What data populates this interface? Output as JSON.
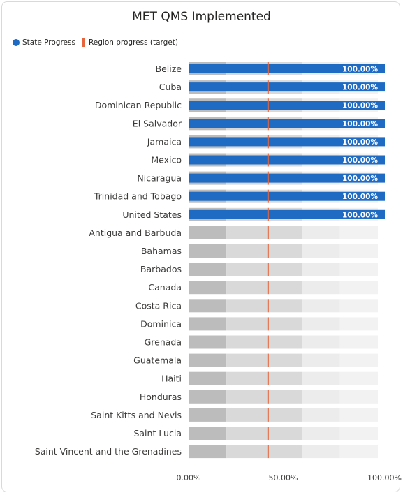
{
  "chart_data": {
    "type": "bar",
    "orientation": "horizontal",
    "title": "MET QMS Implemented",
    "legend": [
      {
        "name": "State Progress",
        "marker": "dot",
        "color": "#1f6bc4"
      },
      {
        "name": "Region progress (target)",
        "marker": "line",
        "color": "#e8663d"
      }
    ],
    "legend_position": "top-left",
    "categories": [
      "Belize",
      "Cuba",
      "Dominican Republic",
      "El Salvador",
      "Jamaica",
      "Mexico",
      "Nicaragua",
      "Trinidad and Tobago",
      "United States",
      "Antigua and Barbuda",
      "Bahamas",
      "Barbados",
      "Canada",
      "Costa Rica",
      "Dominica",
      "Grenada",
      "Guatemala",
      "Haiti",
      "Honduras",
      "Saint Kitts and Nevis",
      "Saint Lucia",
      "Saint Vincent and the Grenadines"
    ],
    "series": [
      {
        "name": "State Progress",
        "color": "#1f6bc4",
        "values": [
          100,
          100,
          100,
          100,
          100,
          100,
          100,
          100,
          100,
          0,
          0,
          0,
          0,
          0,
          0,
          0,
          0,
          0,
          0,
          0,
          0,
          0
        ]
      }
    ],
    "data_labels": [
      "100.00%",
      "100.00%",
      "100.00%",
      "100.00%",
      "100.00%",
      "100.00%",
      "100.00%",
      "100.00%",
      "100.00%"
    ],
    "target": 42,
    "target_color": "#e8663d",
    "bands": [
      {
        "from": 0,
        "to": 20,
        "color": "#bcbcbc"
      },
      {
        "from": 20,
        "to": 60,
        "color": "#d9d9d9"
      },
      {
        "from": 60,
        "to": 80,
        "color": "#ececec"
      },
      {
        "from": 80,
        "to": 100,
        "color": "#f2f2f2"
      }
    ],
    "xlim": [
      0,
      100
    ],
    "x_ticks": [
      "0.00%",
      "50.00%",
      "100.00%"
    ],
    "grid": false
  }
}
